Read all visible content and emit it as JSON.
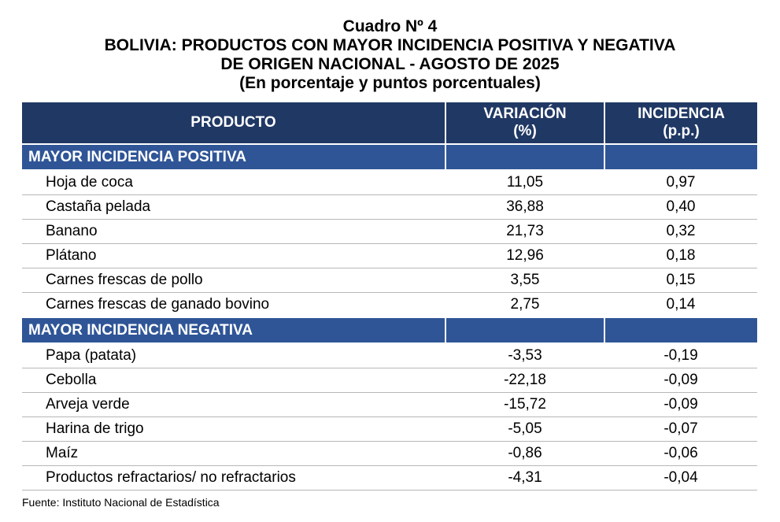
{
  "titles": {
    "line1": "Cuadro Nº 4",
    "line2": "BOLIVIA: PRODUCTOS CON MAYOR INCIDENCIA POSITIVA Y NEGATIVA",
    "line3": "DE ORIGEN NACIONAL -  AGOSTO DE 2025",
    "line4": "(En porcentaje y puntos porcentuales)"
  },
  "headers": {
    "producto": "PRODUCTO",
    "variacion": "VARIACIÓN",
    "variacion_unit": "(%)",
    "incidencia": "INCIDENCIA",
    "incidencia_unit": "(p.p.)"
  },
  "sections": {
    "positive": "MAYOR INCIDENCIA POSITIVA",
    "negative": "MAYOR INCIDENCIA NEGATIVA"
  },
  "positive_rows": [
    {
      "producto": "Hoja de coca",
      "variacion": "11,05",
      "incidencia": "0,97"
    },
    {
      "producto": "Castaña pelada",
      "variacion": "36,88",
      "incidencia": "0,40"
    },
    {
      "producto": "Banano",
      "variacion": "21,73",
      "incidencia": "0,32"
    },
    {
      "producto": "Plátano",
      "variacion": "12,96",
      "incidencia": "0,18"
    },
    {
      "producto": "Carnes frescas de pollo",
      "variacion": "3,55",
      "incidencia": "0,15"
    },
    {
      "producto": "Carnes frescas de ganado bovino",
      "variacion": "2,75",
      "incidencia": "0,14"
    }
  ],
  "negative_rows": [
    {
      "producto": "Papa (patata)",
      "variacion": "-3,53",
      "incidencia": "-0,19"
    },
    {
      "producto": "Cebolla",
      "variacion": "-22,18",
      "incidencia": "-0,09"
    },
    {
      "producto": "Arveja verde",
      "variacion": "-15,72",
      "incidencia": "-0,09"
    },
    {
      "producto": "Harina de trigo",
      "variacion": "-5,05",
      "incidencia": "-0,07"
    },
    {
      "producto": "Maíz",
      "variacion": "-0,86",
      "incidencia": "-0,06"
    },
    {
      "producto": "Productos refractarios/ no refractarios",
      "variacion": "-4,31",
      "incidencia": "-0,04"
    }
  ],
  "source": "Fuente: Instituto Nacional de Estadística",
  "colors": {
    "header": "#203864",
    "section": "#2f5597"
  }
}
